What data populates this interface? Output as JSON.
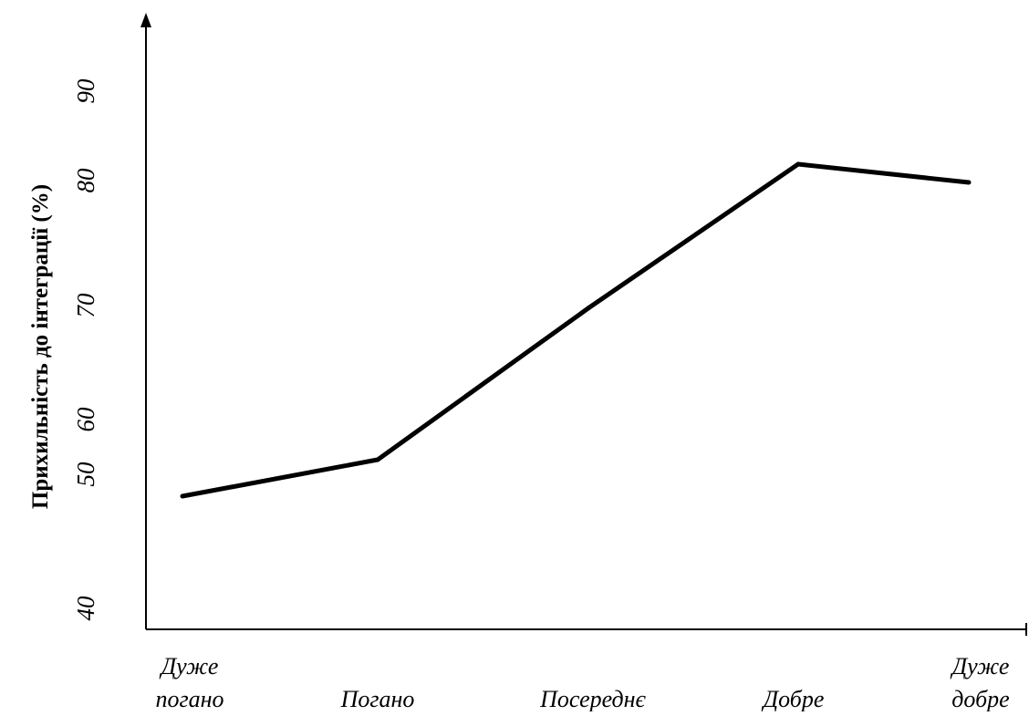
{
  "chart_data": {
    "type": "line",
    "categories": [
      [
        "Дуже",
        "погано"
      ],
      [
        "Погано"
      ],
      [
        "Посереднє"
      ],
      [
        "Добре"
      ],
      [
        "Дуже",
        "добре"
      ]
    ],
    "values": [
      50.3,
      54.3,
      69.5,
      84.2,
      82.1
    ],
    "xlabel": "",
    "ylabel": "Прихильність до інтеграції (%)",
    "yticks": [
      {
        "value": 40,
        "label": "40"
      },
      {
        "value": 50,
        "label": "50"
      },
      {
        "value": 60,
        "label": "60"
      },
      {
        "value": 70,
        "label": "70"
      },
      {
        "value": 80,
        "label": "80"
      },
      {
        "value": 90,
        "label": "90"
      }
    ],
    "grid": false,
    "line_color": "#000000"
  }
}
